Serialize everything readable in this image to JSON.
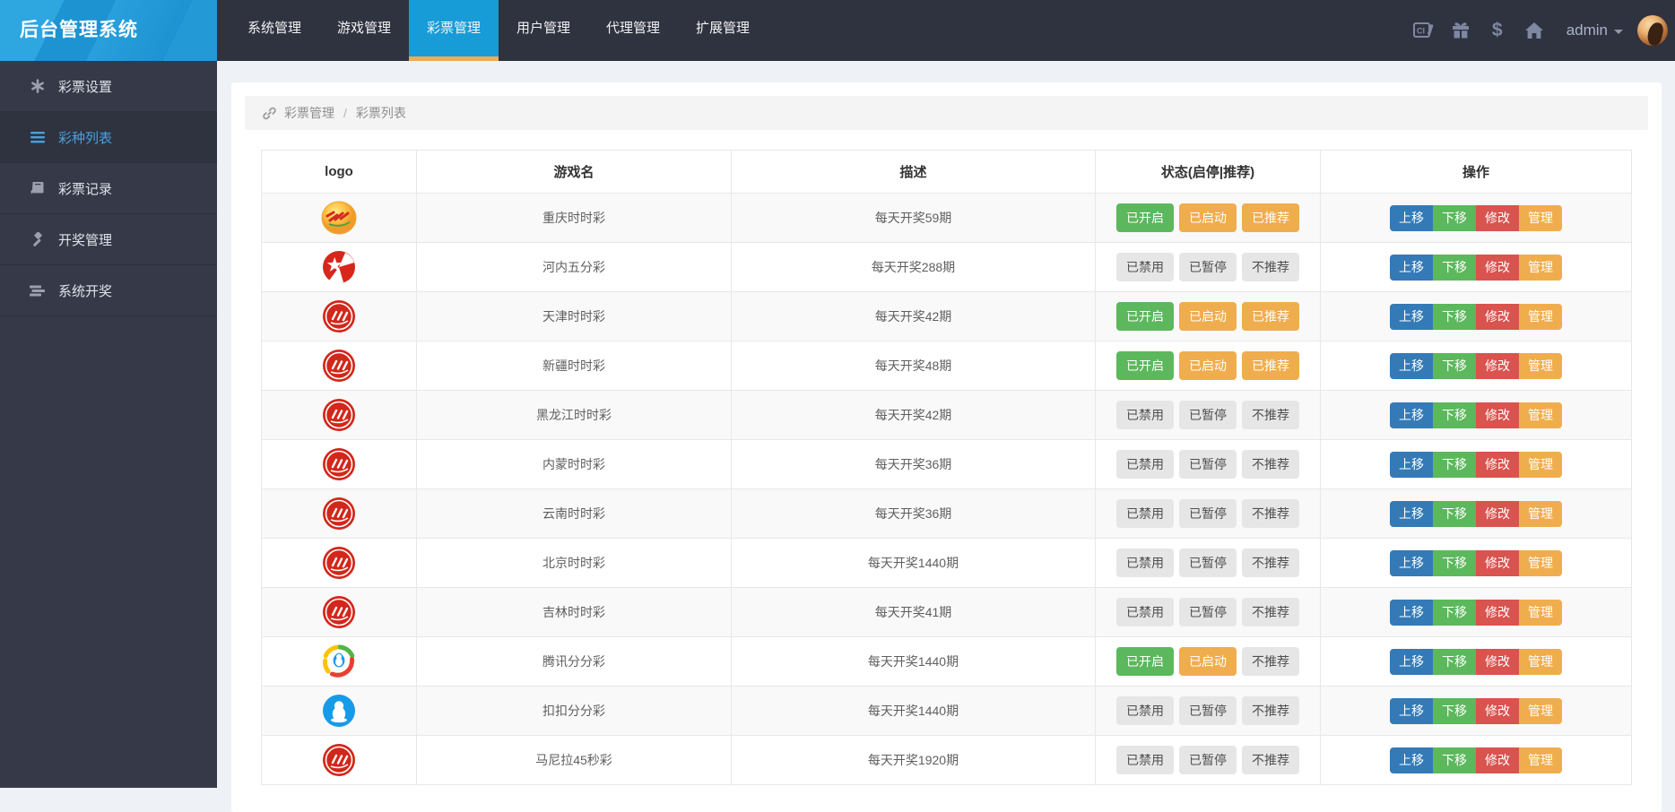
{
  "brand": {
    "title": "后台管理系统"
  },
  "topnav": {
    "tabs": [
      {
        "label": "系统管理",
        "active": false
      },
      {
        "label": "游戏管理",
        "active": false
      },
      {
        "label": "彩票管理",
        "active": true
      },
      {
        "label": "用户管理",
        "active": false
      },
      {
        "label": "代理管理",
        "active": false
      },
      {
        "label": "扩展管理",
        "active": false
      }
    ],
    "user": {
      "name": "admin"
    },
    "icons": [
      "console-icon",
      "gift-icon",
      "dollar-icon",
      "home-icon"
    ],
    "dollar_glyph": "$"
  },
  "sidebar": {
    "items": [
      {
        "label": "彩票设置",
        "icon": "gear-icon",
        "active": false
      },
      {
        "label": "彩种列表",
        "icon": "list-icon",
        "active": true
      },
      {
        "label": "彩票记录",
        "icon": "book-icon",
        "active": false
      },
      {
        "label": "开奖管理",
        "icon": "gavel-icon",
        "active": false
      },
      {
        "label": "系统开奖",
        "icon": "rows-icon",
        "active": false
      }
    ]
  },
  "breadcrumb": {
    "items": [
      "彩票管理",
      "彩票列表"
    ],
    "separator": "/"
  },
  "table": {
    "headers": [
      "logo",
      "游戏名",
      "描述",
      "状态(启停|推荐)",
      "操作"
    ],
    "action_labels": [
      "上移",
      "下移",
      "修改",
      "管理"
    ],
    "action_styles": [
      "blue",
      "green",
      "red",
      "orange"
    ],
    "rows": [
      {
        "logo": "cq",
        "name": "重庆时时彩",
        "desc": "每天开奖59期",
        "statuses": [
          {
            "label": "已开启",
            "style": "green"
          },
          {
            "label": "已启动",
            "style": "orange"
          },
          {
            "label": "已推荐",
            "style": "orange"
          }
        ]
      },
      {
        "logo": "hanoi",
        "name": "河内五分彩",
        "desc": "每天开奖288期",
        "statuses": [
          {
            "label": "已禁用",
            "style": "gray"
          },
          {
            "label": "已暂停",
            "style": "gray"
          },
          {
            "label": "不推荐",
            "style": "gray"
          }
        ]
      },
      {
        "logo": "red",
        "name": "天津时时彩",
        "desc": "每天开奖42期",
        "statuses": [
          {
            "label": "已开启",
            "style": "green"
          },
          {
            "label": "已启动",
            "style": "orange"
          },
          {
            "label": "已推荐",
            "style": "orange"
          }
        ]
      },
      {
        "logo": "red",
        "name": "新疆时时彩",
        "desc": "每天开奖48期",
        "statuses": [
          {
            "label": "已开启",
            "style": "green"
          },
          {
            "label": "已启动",
            "style": "orange"
          },
          {
            "label": "已推荐",
            "style": "orange"
          }
        ]
      },
      {
        "logo": "red",
        "name": "黑龙江时时彩",
        "desc": "每天开奖42期",
        "statuses": [
          {
            "label": "已禁用",
            "style": "gray"
          },
          {
            "label": "已暂停",
            "style": "gray"
          },
          {
            "label": "不推荐",
            "style": "gray"
          }
        ]
      },
      {
        "logo": "red",
        "name": "内蒙时时彩",
        "desc": "每天开奖36期",
        "statuses": [
          {
            "label": "已禁用",
            "style": "gray"
          },
          {
            "label": "已暂停",
            "style": "gray"
          },
          {
            "label": "不推荐",
            "style": "gray"
          }
        ]
      },
      {
        "logo": "red",
        "name": "云南时时彩",
        "desc": "每天开奖36期",
        "statuses": [
          {
            "label": "已禁用",
            "style": "gray"
          },
          {
            "label": "已暂停",
            "style": "gray"
          },
          {
            "label": "不推荐",
            "style": "gray"
          }
        ]
      },
      {
        "logo": "red",
        "name": "北京时时彩",
        "desc": "每天开奖1440期",
        "statuses": [
          {
            "label": "已禁用",
            "style": "gray"
          },
          {
            "label": "已暂停",
            "style": "gray"
          },
          {
            "label": "不推荐",
            "style": "gray"
          }
        ]
      },
      {
        "logo": "red",
        "name": "吉林时时彩",
        "desc": "每天开奖41期",
        "statuses": [
          {
            "label": "已禁用",
            "style": "gray"
          },
          {
            "label": "已暂停",
            "style": "gray"
          },
          {
            "label": "不推荐",
            "style": "gray"
          }
        ]
      },
      {
        "logo": "tencent",
        "name": "腾讯分分彩",
        "desc": "每天开奖1440期",
        "statuses": [
          {
            "label": "已开启",
            "style": "green"
          },
          {
            "label": "已启动",
            "style": "orange"
          },
          {
            "label": "不推荐",
            "style": "gray"
          }
        ]
      },
      {
        "logo": "qq",
        "name": "扣扣分分彩",
        "desc": "每天开奖1440期",
        "statuses": [
          {
            "label": "已禁用",
            "style": "gray"
          },
          {
            "label": "已暂停",
            "style": "gray"
          },
          {
            "label": "不推荐",
            "style": "gray"
          }
        ]
      },
      {
        "logo": "red",
        "name": "马尼拉45秒彩",
        "desc": "每天开奖1920期",
        "statuses": [
          {
            "label": "已禁用",
            "style": "gray"
          },
          {
            "label": "已暂停",
            "style": "gray"
          },
          {
            "label": "不推荐",
            "style": "gray"
          }
        ]
      }
    ]
  },
  "colors": {
    "topbar": "#2f323f",
    "sidebar": "#353948",
    "accent_blue": "#189cd8",
    "tab_underline": "#f0ad4e",
    "status_green": "#5cb85c",
    "status_orange": "#f0ad4e",
    "status_gray": "#e6e6e6",
    "action_blue": "#337ab7",
    "action_green": "#5cb85c",
    "action_red": "#d9534f",
    "action_orange": "#f0ad4e",
    "page_bg": "#eef1f6"
  }
}
